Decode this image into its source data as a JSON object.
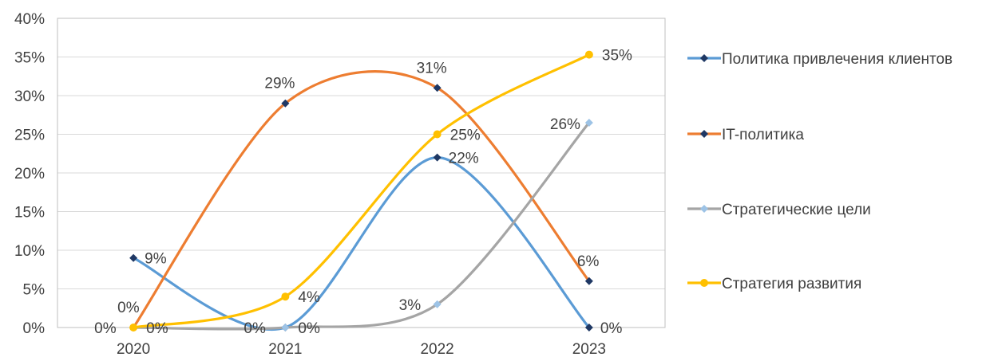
{
  "chart_data": {
    "type": "line",
    "smooth": true,
    "categories": [
      "2020",
      "2021",
      "2022",
      "2023"
    ],
    "ylim": [
      0,
      40
    ],
    "yticks": [
      "0%",
      "5%",
      "10%",
      "15%",
      "20%",
      "25%",
      "30%",
      "35%",
      "40%"
    ],
    "y_unit": "%",
    "grid": true,
    "legend_position": "right",
    "series": [
      {
        "name": "Политика привлечения клиентов",
        "values": [
          9,
          0,
          22,
          0
        ],
        "labels": [
          "9%",
          "0%",
          "22%",
          "0%"
        ],
        "color": "#5B9BD5",
        "marker_color": "#1F3864",
        "marker": "diamond"
      },
      {
        "name": "IT-политика",
        "values": [
          0,
          29,
          31,
          6
        ],
        "labels": [
          "0%",
          "29%",
          "31%",
          "6%"
        ],
        "color": "#ED7D31",
        "marker_color": "#1F3864",
        "marker": "diamond"
      },
      {
        "name": "Стратегические цели",
        "values": [
          0,
          0,
          3,
          26.5
        ],
        "labels": [
          "0%",
          "0%",
          "3%",
          "26%"
        ],
        "color": "#A5A5A5",
        "marker_color": "#9DC3E6",
        "marker": "diamond"
      },
      {
        "name": "Стратегия развития",
        "values": [
          0,
          4,
          25,
          35.3
        ],
        "labels": [
          "0%",
          "4%",
          "25%",
          "35%"
        ],
        "color": "#FFC000",
        "marker_color": "#FFC000",
        "marker": "circle"
      }
    ]
  }
}
